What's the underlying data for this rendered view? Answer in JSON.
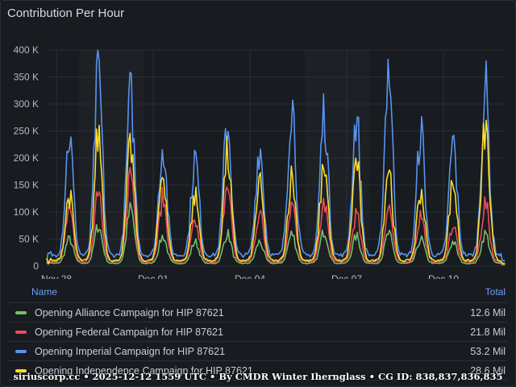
{
  "panel": {
    "title": "Contribution Per Hour"
  },
  "legend": {
    "name_header": "Name",
    "total_header": "Total",
    "rows": [
      {
        "name": "Opening Alliance Campaign for HIP 87621",
        "total": "12.6 Mil",
        "color": "#73bf69"
      },
      {
        "name": "Opening Federal Campaign for HIP 87621",
        "total": "21.8 Mil",
        "color": "#f2495c"
      },
      {
        "name": "Opening Imperial Campaign for HIP 87621",
        "total": "53.2 Mil",
        "color": "#5794f2"
      },
      {
        "name": "Opening Independence Campaign for HIP 87621",
        "total": "28.6 Mil",
        "color": "#fade2a"
      }
    ]
  },
  "footer": "siriuscorp.cc • 2025-12-12 1559 UTC • By CMDR Winter Ihernglаss • CG ID: 838,837,836,835",
  "chart_data": {
    "type": "line",
    "x_range_days": [
      0,
      14.2
    ],
    "x_ticks": [
      {
        "day": 0.3,
        "label": "Nov 28"
      },
      {
        "day": 3.3,
        "label": "Dec 01"
      },
      {
        "day": 6.3,
        "label": "Dec 04"
      },
      {
        "day": 9.3,
        "label": "Dec 07"
      },
      {
        "day": 12.3,
        "label": "Dec 10"
      }
    ],
    "ylim": [
      0,
      400000
    ],
    "y_ticks": [
      "0",
      "50 K",
      "100 K",
      "150 K",
      "200 K",
      "250 K",
      "300 K",
      "350 K",
      "400 K"
    ],
    "grid": true,
    "daily_peaks": {
      "days": [
        0.7,
        1.6,
        2.6,
        3.6,
        4.6,
        5.6,
        6.6,
        7.6,
        8.6,
        9.6,
        10.6,
        11.6,
        12.6,
        13.6
      ],
      "Opening Imperial Campaign for HIP 87621": [
        240000,
        360000,
        315000,
        225000,
        200000,
        265000,
        220000,
        305000,
        285000,
        275000,
        375000,
        250000,
        230000,
        330000
      ],
      "Opening Independence Campaign for HIP 87621": [
        130000,
        245000,
        220000,
        175000,
        130000,
        205000,
        150000,
        165000,
        190000,
        195000,
        185000,
        140000,
        155000,
        255000
      ],
      "Opening Federal Campaign for HIP 87621": [
        100000,
        150000,
        175000,
        125000,
        80000,
        150000,
        100000,
        115000,
        115000,
        95000,
        110000,
        95000,
        75000,
        115000
      ],
      "Opening Alliance Campaign for HIP 87621": [
        50000,
        75000,
        105000,
        55000,
        45000,
        60000,
        45000,
        60000,
        65000,
        55000,
        60000,
        50000,
        45000,
        60000
      ]
    },
    "daily_lows": {
      "Opening Imperial Campaign for HIP 87621": 20000,
      "Opening Independence Campaign for HIP 87621": 10000,
      "Opening Federal Campaign for HIP 87621": 8000,
      "Opening Alliance Campaign for HIP 87621": 5000
    }
  }
}
